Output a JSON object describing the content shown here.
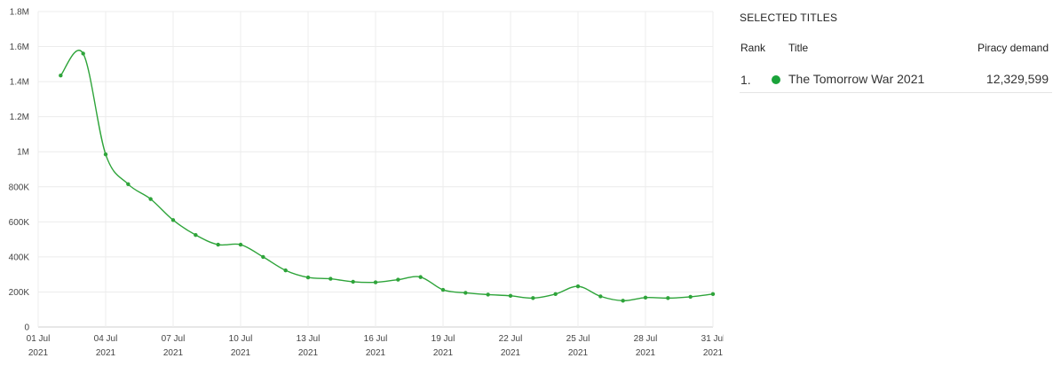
{
  "chart_data": {
    "type": "line",
    "x_tick_labels": [
      [
        "01 Jul",
        "2021"
      ],
      [
        "04 Jul",
        "2021"
      ],
      [
        "07 Jul",
        "2021"
      ],
      [
        "10 Jul",
        "2021"
      ],
      [
        "13 Jul",
        "2021"
      ],
      [
        "16 Jul",
        "2021"
      ],
      [
        "19 Jul",
        "2021"
      ],
      [
        "22 Jul",
        "2021"
      ],
      [
        "25 Jul",
        "2021"
      ],
      [
        "28 Jul",
        "2021"
      ],
      [
        "31 Jul",
        "2021"
      ]
    ],
    "y_tick_labels": [
      "0",
      "200K",
      "400K",
      "600K",
      "800K",
      "1M",
      "1.2M",
      "1.4M",
      "1.6M",
      "1.8M"
    ],
    "xlim": [
      1,
      31
    ],
    "ylim": [
      0,
      1800000
    ],
    "grid": true,
    "series": [
      {
        "color": "#2ea43a",
        "x": [
          2,
          3,
          4,
          5,
          6,
          7,
          8,
          9,
          10,
          11,
          12,
          13,
          14,
          15,
          16,
          17,
          18,
          19,
          20,
          21,
          22,
          23,
          24,
          25,
          26,
          27,
          28,
          29,
          30,
          31
        ],
        "y": [
          1435000,
          1560000,
          985000,
          815000,
          730000,
          610000,
          525000,
          470000,
          470000,
          400000,
          323000,
          283000,
          275000,
          258000,
          255000,
          270000,
          285000,
          212000,
          195000,
          185000,
          178000,
          165000,
          188000,
          232000,
          175000,
          150000,
          168000,
          165000,
          172000,
          188000
        ]
      }
    ]
  },
  "panel": {
    "title": "SELECTED TITLES",
    "headers": {
      "rank": "Rank",
      "title": "Title",
      "demand": "Piracy demand"
    },
    "rows": [
      {
        "rank": "1.",
        "title": "The Tomorrow War 2021",
        "demand": "12,329,599",
        "color": "#1aa33a"
      }
    ]
  }
}
